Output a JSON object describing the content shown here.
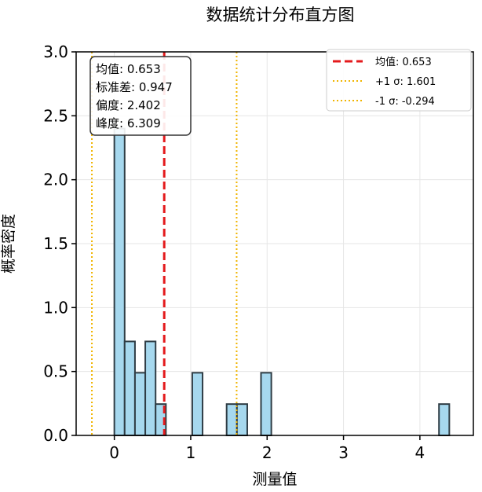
{
  "chart_data": {
    "type": "histogram",
    "title": "数据统计分布直方图",
    "xlabel": "测量值",
    "ylabel": "概率密度",
    "xlim": [
      -0.5,
      4.7
    ],
    "ylim": [
      0,
      3.0
    ],
    "xticks": [
      "0",
      "1",
      "2",
      "3",
      "4"
    ],
    "xtick_values": [
      0,
      1,
      2,
      3,
      4
    ],
    "yticks": [
      "0.0",
      "0.5",
      "1.0",
      "1.5",
      "2.0",
      "2.5",
      "3.0"
    ],
    "ytick_values": [
      0,
      0.5,
      1.0,
      1.5,
      2.0,
      2.5,
      3.0
    ],
    "grid": true,
    "bar_color": "#a6d8ee",
    "bar_edge_color": "#2f3d45",
    "bins": [
      {
        "x0": 0.0,
        "x1": 0.135,
        "density": 2.4
      },
      {
        "x0": 0.135,
        "x1": 0.27,
        "density": 0.735
      },
      {
        "x0": 0.27,
        "x1": 0.405,
        "density": 0.49
      },
      {
        "x0": 0.405,
        "x1": 0.54,
        "density": 0.735
      },
      {
        "x0": 0.54,
        "x1": 0.675,
        "density": 0.245
      },
      {
        "x0": 1.02,
        "x1": 1.155,
        "density": 0.49
      },
      {
        "x0": 1.47,
        "x1": 1.605,
        "density": 0.245
      },
      {
        "x0": 1.605,
        "x1": 1.74,
        "density": 0.245
      },
      {
        "x0": 1.92,
        "x1": 2.055,
        "density": 0.49
      },
      {
        "x0": 4.25,
        "x1": 4.385,
        "density": 0.245
      }
    ],
    "mean": 0.653,
    "plus_sigma": 1.601,
    "minus_sigma": -0.294,
    "mean_color": "#e41a1c",
    "sigma_color": "#f0b400",
    "stats_box": [
      "均值: 0.653",
      "标准差: 0.947",
      "偏度: 2.402",
      "峰度: 6.309"
    ],
    "legend": {
      "position": "top-right",
      "entries": [
        {
          "label": "均值: 0.653",
          "style": "dashed",
          "color": "#e41a1c"
        },
        {
          "label": "+1 σ: 1.601",
          "style": "dotted",
          "color": "#f0b400"
        },
        {
          "label": "-1 σ: -0.294",
          "style": "dotted",
          "color": "#f0b400"
        }
      ]
    }
  }
}
